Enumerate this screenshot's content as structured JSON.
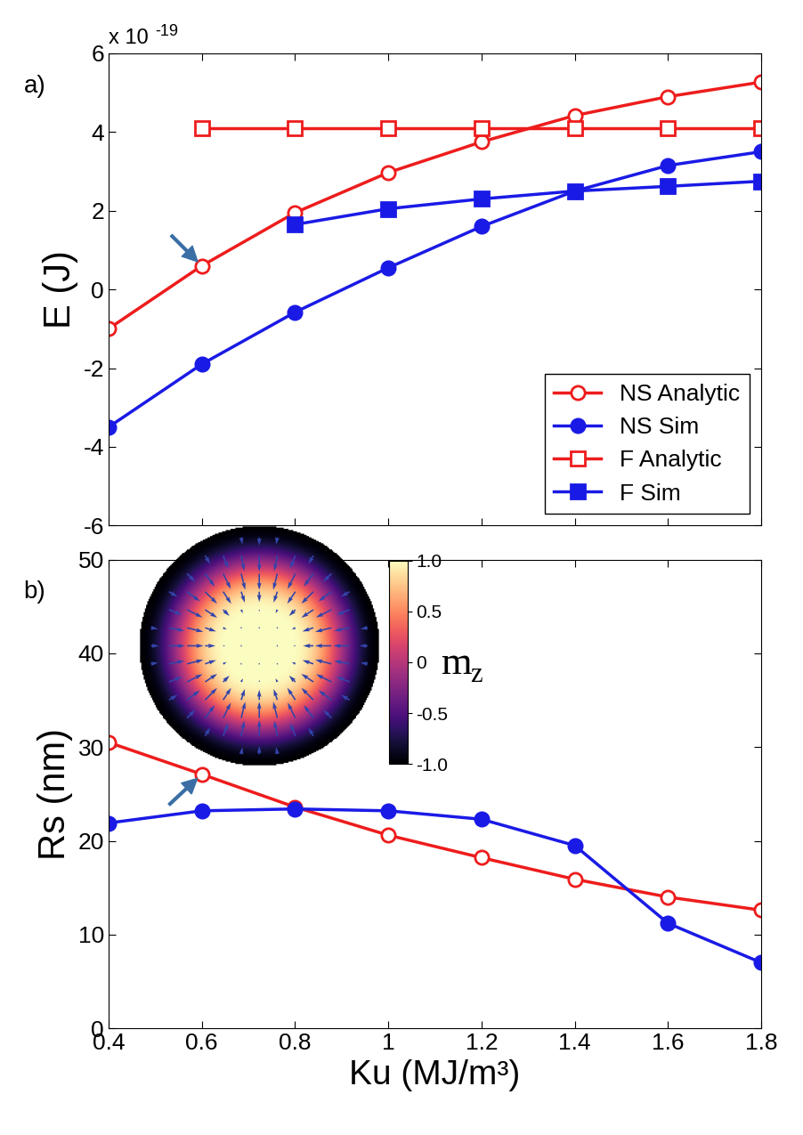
{
  "chart_data": [
    {
      "type": "line",
      "panel_label": "a)",
      "ylabel": "E (J)",
      "y_multiplier": {
        "base": "x 10",
        "exponent": "-19"
      },
      "x": [
        0.4,
        0.6,
        0.8,
        1,
        1.2,
        1.4,
        1.6,
        1.8
      ],
      "xlim": [
        0.4,
        1.8
      ],
      "xticks": [
        0.4,
        0.6,
        0.8,
        1,
        1.2,
        1.4,
        1.6,
        1.8
      ],
      "ylim": [
        -6,
        6
      ],
      "yticks": [
        -6,
        -4,
        -2,
        0,
        2,
        4,
        6
      ],
      "tick_labels": "y",
      "legend": "lower right",
      "series": [
        {
          "name": "NS Analytic",
          "color": "#ee1c1c",
          "marker": "open_circle",
          "values": [
            -1.0,
            0.6,
            1.95,
            2.97,
            3.75,
            4.42,
            4.9,
            5.27
          ]
        },
        {
          "name": "NS Sim",
          "color": "#1a1ae6",
          "marker": "filled_circle",
          "values": [
            -3.5,
            -1.9,
            -0.58,
            0.55,
            1.6,
            2.5,
            3.15,
            3.5
          ]
        },
        {
          "name": "F Analytic",
          "color": "#ee1c1c",
          "marker": "open_square",
          "values": [
            null,
            4.1,
            4.1,
            4.1,
            4.1,
            4.1,
            4.1,
            4.1
          ]
        },
        {
          "name": "F Sim",
          "color": "#1a1ae6",
          "marker": "filled_square",
          "values": [
            null,
            null,
            1.65,
            2.05,
            2.3,
            2.5,
            2.62,
            2.75
          ]
        }
      ]
    },
    {
      "type": "line",
      "panel_label": "b)",
      "ylabel": "Rs (nm)",
      "xlabel": "Ku (MJ/m³)",
      "x": [
        0.4,
        0.6,
        0.8,
        1,
        1.2,
        1.4,
        1.6,
        1.8
      ],
      "xlim": [
        0.4,
        1.8
      ],
      "xticks": [
        0.4,
        0.6,
        0.8,
        1,
        1.2,
        1.4,
        1.6,
        1.8
      ],
      "ylim": [
        0,
        50
      ],
      "yticks": [
        0,
        10,
        20,
        30,
        40,
        50
      ],
      "series": [
        {
          "color": "#ee1c1c",
          "marker": "open_circle",
          "values": [
            30.5,
            27.1,
            23.6,
            20.6,
            18.2,
            15.9,
            14.0,
            12.6
          ]
        },
        {
          "color": "#1a1ae6",
          "marker": "filled_circle",
          "values": [
            21.9,
            23.2,
            23.4,
            23.2,
            22.3,
            19.5,
            11.2,
            7.0
          ]
        }
      ],
      "inset": {
        "colorbar_range": [
          -1.0,
          1.0
        ],
        "colorbar_ticks": [
          1.0,
          0.5,
          0,
          -0.5,
          -1.0
        ],
        "colorbar_label": {
          "symbol": "m",
          "subscript": "z"
        }
      }
    }
  ]
}
